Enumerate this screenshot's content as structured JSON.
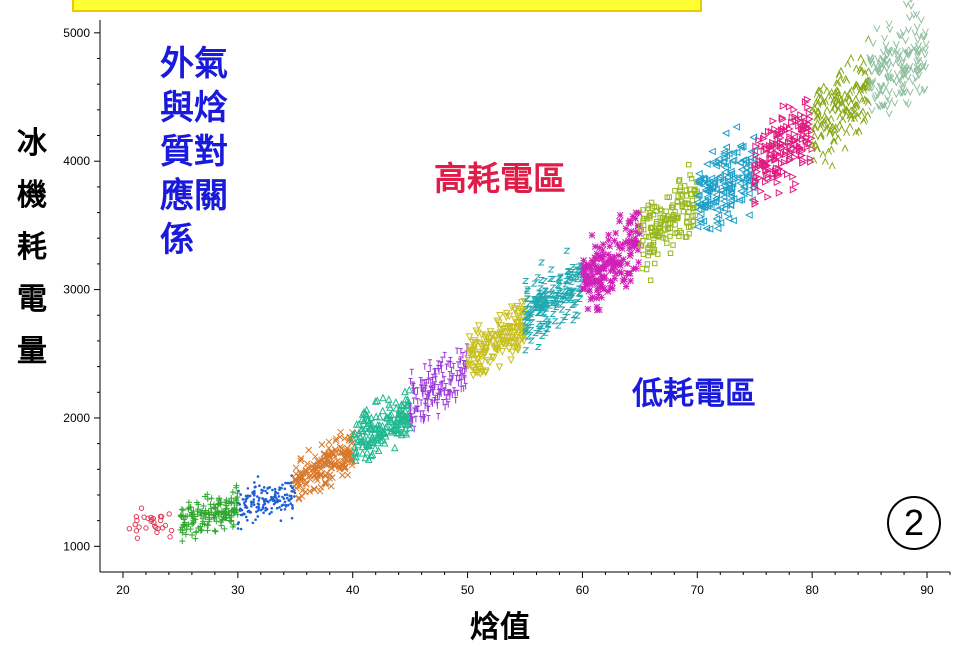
{
  "chart_data": {
    "type": "scatter",
    "title": "外氣與焓質對應關係",
    "title_lines": [
      "外氣",
      "與焓",
      "質對",
      "應關",
      "係"
    ],
    "xlabel": "焓值",
    "ylabel": "冰機耗電量",
    "ylabel_chars": [
      "冰",
      "機",
      "耗",
      "電",
      "量"
    ],
    "xlim": [
      18,
      92
    ],
    "ylim": [
      800,
      5100
    ],
    "x_ticks": [
      20,
      30,
      40,
      50,
      60,
      70,
      80,
      90
    ],
    "y_ticks": [
      1000,
      2000,
      3000,
      4000,
      5000
    ],
    "x_tick_labels": [
      "20",
      "30",
      "40",
      "50",
      "60",
      "70",
      "80",
      "90"
    ],
    "y_tick_labels": [
      "1000",
      "2000",
      "3000",
      "4000",
      "5000"
    ],
    "grid": false,
    "legend": "none",
    "annotations": {
      "high": "高耗電區",
      "low": "低耗電區",
      "badge": "2"
    },
    "series": [
      {
        "x_range": [
          20,
          25
        ],
        "y_center": [
          1150,
          1180
        ],
        "color": "#e0405a",
        "marker": "circle"
      },
      {
        "x_range": [
          25,
          30
        ],
        "y_center": [
          1180,
          1320
        ],
        "color": "#2ea82e",
        "marker": "plus"
      },
      {
        "x_range": [
          30,
          35
        ],
        "y_center": [
          1300,
          1420
        ],
        "color": "#1f5fd8",
        "marker": "dot"
      },
      {
        "x_range": [
          35,
          40
        ],
        "y_center": [
          1480,
          1750
        ],
        "color": "#d8782a",
        "marker": "x"
      },
      {
        "x_range": [
          40,
          45
        ],
        "y_center": [
          1800,
          2050
        ],
        "color": "#20b890",
        "marker": "triangle"
      },
      {
        "x_range": [
          45,
          50
        ],
        "y_center": [
          2100,
          2400
        ],
        "color": "#9a3ad8",
        "marker": "tick"
      },
      {
        "x_range": [
          50,
          55
        ],
        "y_center": [
          2450,
          2750
        ],
        "color": "#c8c020",
        "marker": "tri-down"
      },
      {
        "x_range": [
          55,
          60
        ],
        "y_center": [
          2800,
          3050
        ],
        "color": "#20a8b0",
        "marker": "z"
      },
      {
        "x_range": [
          60,
          65
        ],
        "y_center": [
          3050,
          3400
        ],
        "color": "#d020b8",
        "marker": "star"
      },
      {
        "x_range": [
          65,
          70
        ],
        "y_center": [
          3350,
          3700
        ],
        "color": "#98b820",
        "marker": "square"
      },
      {
        "x_range": [
          70,
          75
        ],
        "y_center": [
          3700,
          3950
        ],
        "color": "#20a0c8",
        "marker": "tri-left"
      },
      {
        "x_range": [
          75,
          80
        ],
        "y_center": [
          3950,
          4250
        ],
        "color": "#e01c80",
        "marker": "tri-right"
      },
      {
        "x_range": [
          80,
          85
        ],
        "y_center": [
          4250,
          4600
        ],
        "color": "#88a818",
        "marker": "caret"
      },
      {
        "x_range": [
          85,
          90
        ],
        "y_center": [
          4650,
          4850
        ],
        "color": "#90c0a0",
        "marker": "v"
      }
    ]
  }
}
